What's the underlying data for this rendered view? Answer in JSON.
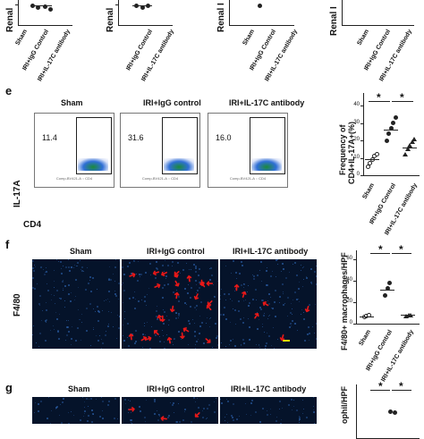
{
  "top_row": {
    "y_label_1": "Renal",
    "y_label_2": "Renal",
    "y_label_3": "Renal I",
    "groups": [
      [
        "Sham",
        "IRI+IgG Control",
        "IRI+IL-17C antibody"
      ],
      [
        "IRI+IgG Control",
        "IRI+IL-17C antibody"
      ],
      [
        "Sham",
        "IRI+IgG Control",
        "IRI+IL-17C antibody"
      ],
      [
        "Sham",
        "IRI+IgG Control",
        "IRI+IL-17C antibody"
      ]
    ]
  },
  "panel_e": {
    "letter": "e",
    "titles": [
      "Sham",
      "IRI+IgG  control",
      "IRI+IL-17C antibody"
    ],
    "gate_values": [
      "11.4",
      "31.6",
      "16.0"
    ],
    "x_axis": "Comp-BV421-A :: CD4",
    "y_axis": "Comp-BV786-A :: IL17",
    "axis_y_label": "IL-17A",
    "axis_x_label": "CD4",
    "plot_ylabel_1": "Frequency of",
    "plot_ylabel_2": "CD4+IL-17A+(%)",
    "sig": [
      "*",
      "*"
    ]
  },
  "panel_f": {
    "letter": "f",
    "titles": [
      "Sham",
      "IRI+IgG  control",
      "IRI+IL-17C antibody"
    ],
    "stain": "F4/80",
    "plot_ylabel": "F4/80+ macrophages/HPF",
    "sig": [
      "*",
      "*"
    ],
    "x_categories": [
      "Sham",
      "IRI+IgG Control",
      "IRI+IL-17C antibody"
    ]
  },
  "panel_g": {
    "letter": "g",
    "titles": [
      "Sham",
      "IRI+IgG  control",
      "IRI+IL-17C antibody"
    ],
    "plot_ylabel": "ophil/HPF",
    "sig": [
      "*",
      "*"
    ]
  },
  "chart_data": [
    {
      "type": "scatter",
      "panel": "e",
      "categories": [
        "Sham",
        "IRI+IgG Control",
        "IRI+IL-17C antibody"
      ],
      "ylabel": "Frequency of CD4+IL-17A+(%)",
      "ylim": [
        0,
        40
      ],
      "yticks": [
        0,
        10,
        20,
        30,
        40
      ],
      "series": [
        {
          "values": [
            [
              5,
              7,
              9,
              11,
              12
            ],
            [
              20,
              24,
              27,
              30,
              33
            ],
            [
              12,
              15,
              17,
              19,
              21
            ]
          ]
        }
      ],
      "means": [
        9,
        26,
        16
      ]
    },
    {
      "type": "scatter",
      "panel": "f",
      "categories": [
        "Sham",
        "IRI+IgG Control",
        "IRI+IL-17C antibody"
      ],
      "ylabel": "F4/80+ macrophages/HPF",
      "ylim": [
        0,
        60
      ],
      "yticks": [
        0,
        20,
        40,
        60
      ],
      "series": [
        {
          "values": [
            [
              6,
              7,
              8
            ],
            [
              26,
              33,
              38
            ],
            [
              7,
              8,
              8
            ]
          ]
        }
      ],
      "means": [
        7,
        32,
        8
      ]
    }
  ]
}
